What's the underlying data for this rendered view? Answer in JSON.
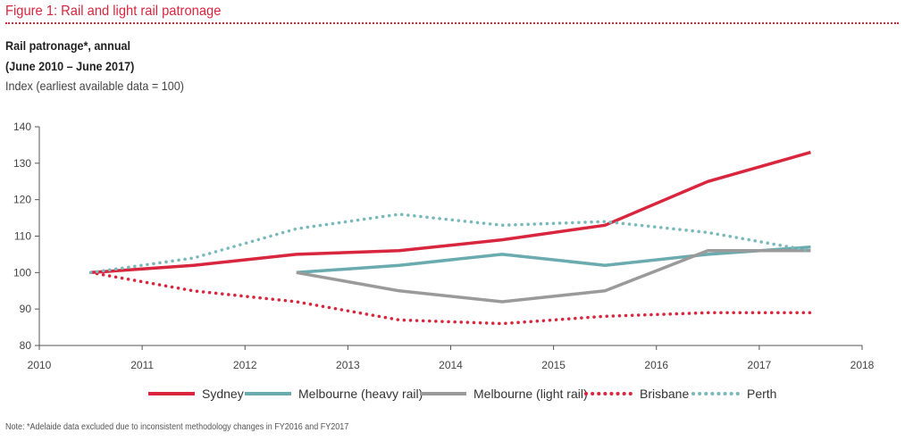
{
  "figure_title": "Figure 1: Rail and light rail patronage",
  "subtitle_line1": "Rail patronage*, annual",
  "subtitle_line2": "(June 2010 – June 2017)",
  "subtitle_line3": "Index (earliest available data = 100)",
  "note": "Note: *Adelaide data excluded due to inconsistent methodology changes in FY2016 and FY2017",
  "colors": {
    "accent": "#d7263d",
    "sydney": "#d7263d",
    "melbourne_heavy": "#6aabaf",
    "melbourne_light": "#9a9a9a",
    "brisbane": "#d7263d",
    "perth": "#79b9bb"
  },
  "chart_data": {
    "type": "line",
    "xlim": [
      2010,
      2018
    ],
    "ylim": [
      80,
      140
    ],
    "x_ticks": [
      "2010",
      "2011",
      "2012",
      "2013",
      "2014",
      "2015",
      "2016",
      "2017",
      "2018"
    ],
    "y_ticks": [
      "80",
      "90",
      "100",
      "110",
      "120",
      "130",
      "140"
    ],
    "grid": false,
    "legend_position": "bottom",
    "series": [
      {
        "name": "Sydney",
        "style": "solid",
        "color": "#d7263d",
        "x": [
          2010.5,
          2011.5,
          2012.5,
          2013.5,
          2014.5,
          2015.5,
          2016.5,
          2017.5
        ],
        "y": [
          100,
          102,
          105,
          106,
          109,
          113,
          125,
          133
        ]
      },
      {
        "name": "Melbourne (heavy rail)",
        "style": "solid",
        "color": "#6aabaf",
        "x": [
          2012.5,
          2013.5,
          2014.5,
          2015.5,
          2016.5,
          2017.5
        ],
        "y": [
          100,
          102,
          105,
          102,
          105,
          107
        ]
      },
      {
        "name": "Melbourne (light rail)",
        "style": "solid",
        "color": "#9a9a9a",
        "x": [
          2012.5,
          2013.5,
          2014.5,
          2015.5,
          2016.5,
          2017.5
        ],
        "y": [
          100,
          95,
          92,
          95,
          106,
          106
        ]
      },
      {
        "name": "Brisbane",
        "style": "dotted",
        "color": "#d7263d",
        "x": [
          2010.5,
          2011.5,
          2012.5,
          2013.5,
          2014.5,
          2015.5,
          2016.5,
          2017.5
        ],
        "y": [
          100,
          95,
          92,
          87,
          86,
          88,
          89,
          89
        ]
      },
      {
        "name": "Perth",
        "style": "dotted",
        "color": "#79b9bb",
        "x": [
          2010.5,
          2011.5,
          2012.5,
          2013.5,
          2014.5,
          2015.5,
          2016.5,
          2017.5
        ],
        "y": [
          100,
          104,
          112,
          116,
          113,
          114,
          111,
          106
        ]
      }
    ]
  }
}
